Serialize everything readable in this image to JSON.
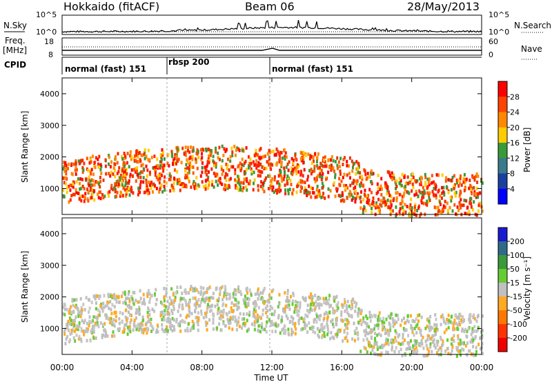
{
  "header": {
    "station": "Hokkaido (fitACF)",
    "beam": "Beam 06",
    "date": "28/May/2013"
  },
  "top_panel": {
    "left_label": "N.Sky",
    "right_label": "N.Search",
    "ticks": [
      "10^5",
      "10^0"
    ]
  },
  "freq_panel": {
    "left_label": "Freq.",
    "left_unit": "[MHz]",
    "right_label": "Nave",
    "ticks_left": [
      "18",
      "8"
    ],
    "ticks_right": [
      "60",
      "0"
    ]
  },
  "cpid": {
    "label": "CPID",
    "segments": [
      {
        "name": "normal (fast) 151",
        "start_hour": 0,
        "end_hour": 6
      },
      {
        "name": "rbsp 200",
        "start_hour": 6,
        "end_hour": 12
      },
      {
        "name": "normal (fast) 151",
        "start_hour": 12,
        "end_hour": 24
      }
    ]
  },
  "x_axis": {
    "label": "Time UT",
    "ticks": [
      "00:00",
      "04:00",
      "08:00",
      "12:00",
      "16:00",
      "20:00",
      "00:00"
    ]
  },
  "chart_data": [
    {
      "type": "heatmap",
      "ylabel": "Slant Range [km]",
      "ylim": [
        180,
        4500
      ],
      "yticks": [
        "1000",
        "2000",
        "3000",
        "4000"
      ],
      "xlim_hours": [
        0,
        24
      ],
      "colorbar": {
        "label": "Power [dB]",
        "ticks": [
          "28",
          "24",
          "20",
          "16",
          "12",
          "8",
          "4"
        ],
        "colors": [
          "#ff0000",
          "#ff4400",
          "#ff8800",
          "#ffcc00",
          "#3a9a3a",
          "#3b7a8a",
          "#1a3fa0",
          "#0000ff"
        ]
      }
    },
    {
      "type": "heatmap",
      "ylabel": "Slant Range [km]",
      "ylim": [
        180,
        4500
      ],
      "yticks": [
        "1000",
        "2000",
        "3000",
        "4000"
      ],
      "xlim_hours": [
        0,
        24
      ],
      "colorbar": {
        "label": "Velocity [m s⁻¹]",
        "ticks": [
          "200",
          "100",
          "50",
          "15",
          "-15",
          "-50",
          "-100",
          "-200"
        ],
        "colors": [
          "#1a1ad0",
          "#2f6a88",
          "#3a9a3a",
          "#66cc33",
          "#c0c0c0",
          "#ffaa22",
          "#ff7700",
          "#ff3300",
          "#ee0000"
        ]
      }
    }
  ]
}
